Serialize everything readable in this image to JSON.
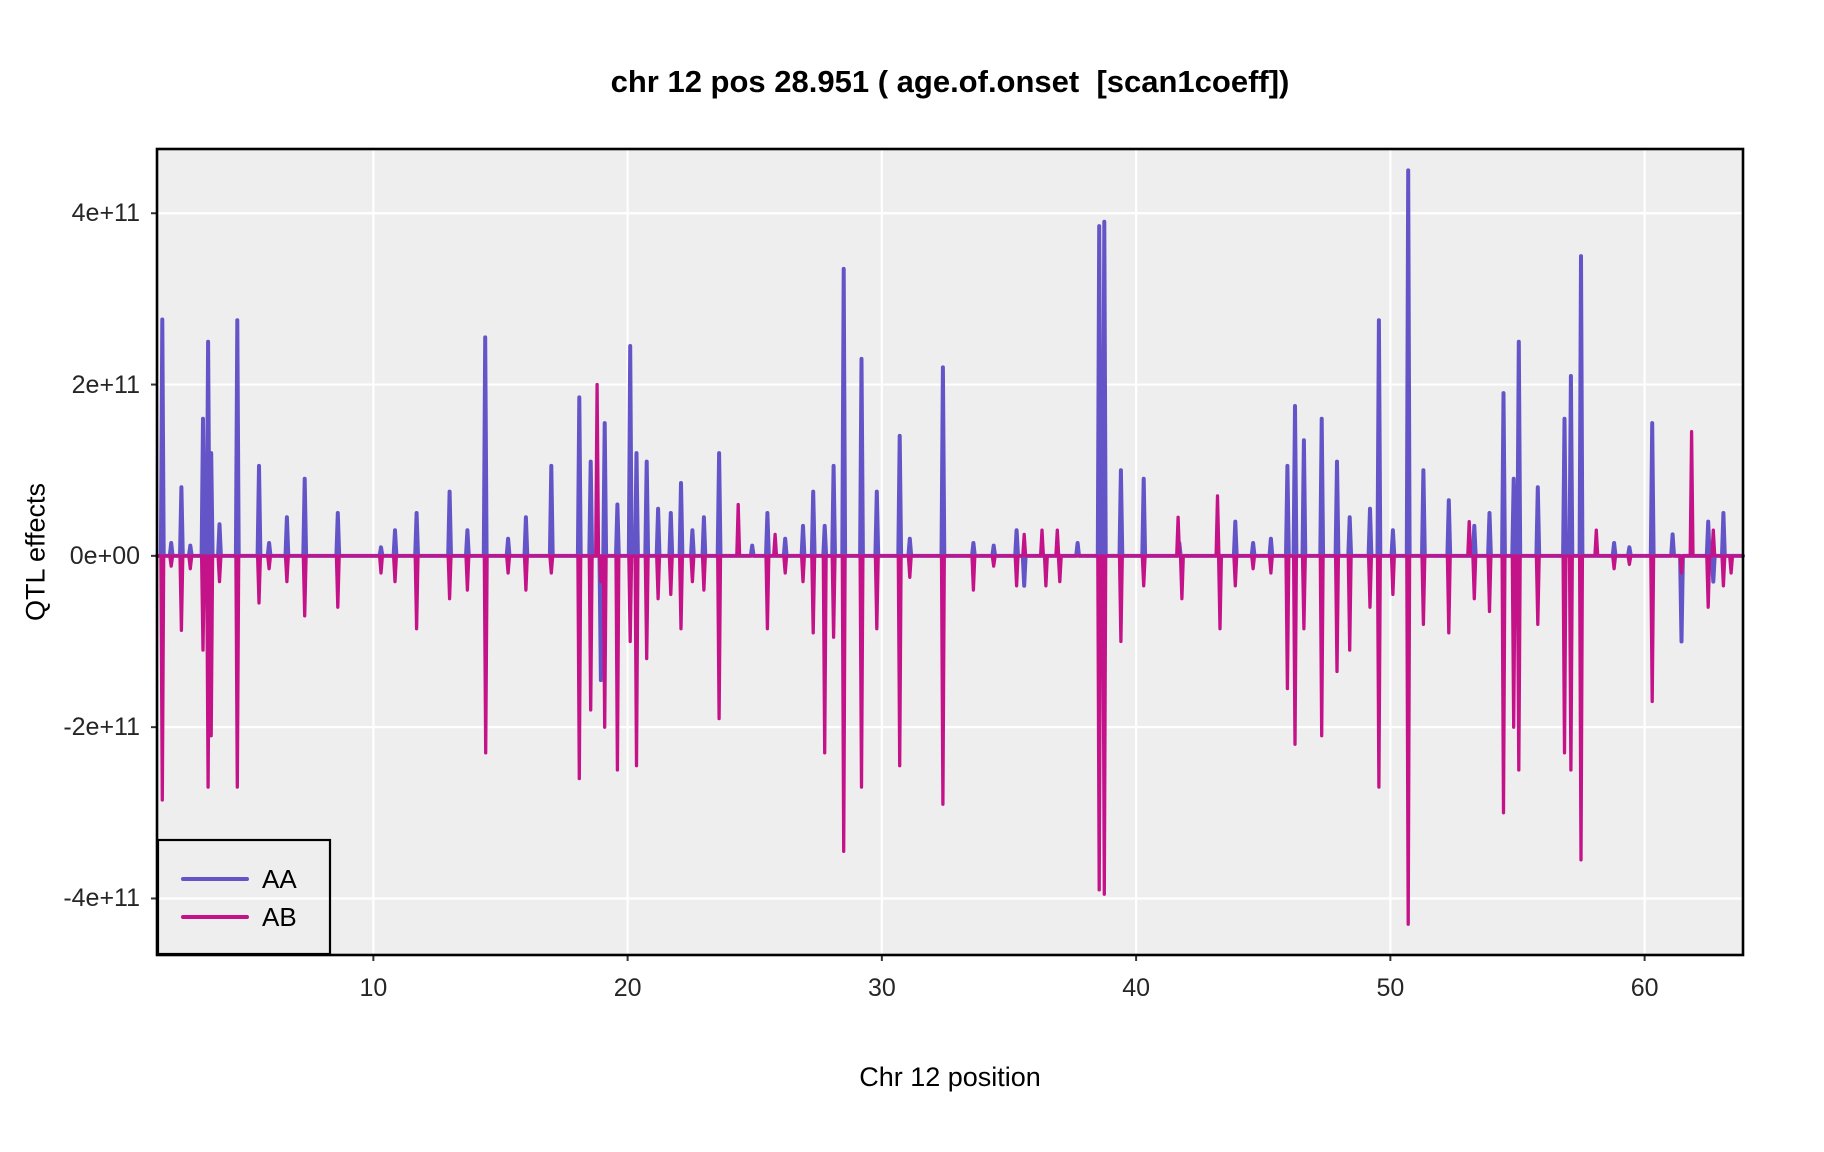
{
  "title": "chr 12 pos 28.951 ( age.of.onset  [scan1coeff])",
  "x_axis_label": "Chr 12 position",
  "y_axis_label": "QTL effects",
  "colors": {
    "aa_line": "#6355C8",
    "ab_line": "#C41389",
    "panel_background": "#EFEEEE",
    "gridline": "#FFFFFF",
    "panel_border": "#000000",
    "tick_text": "#262626",
    "title_text": "#000000"
  },
  "legend": {
    "position": "bottom-left-inside-panel",
    "entries": [
      {
        "label": "AA",
        "color": "#6355C8"
      },
      {
        "label": "AB",
        "color": "#C41389"
      }
    ]
  },
  "chart_data": {
    "type": "line",
    "title": "chr 12 pos 28.951 ( age.of.onset  [scan1coeff])",
    "xlabel": "Chr 12 position",
    "ylabel": "QTL effects",
    "grid": "white major gridlines on gray panel",
    "legend_position": "bottom-left inside panel",
    "value_unit": "1e11",
    "xlim": [
      1.49,
      63.87
    ],
    "ylim_e11": [
      -4.66,
      4.75
    ],
    "x_ticks": [
      {
        "v": 10,
        "label": "10"
      },
      {
        "v": 20,
        "label": "20"
      },
      {
        "v": 30,
        "label": "30"
      },
      {
        "v": 40,
        "label": "40"
      },
      {
        "v": 50,
        "label": "50"
      },
      {
        "v": 60,
        "label": "60"
      }
    ],
    "y_ticks": [
      {
        "v_e11": 4,
        "label": "4e+11"
      },
      {
        "v_e11": 2,
        "label": "2e+11"
      },
      {
        "v_e11": 0,
        "label": "0e+00"
      },
      {
        "v_e11": -2,
        "label": "-2e+11"
      },
      {
        "v_e11": -4,
        "label": "-4e+11"
      }
    ],
    "series": [
      {
        "name": "AA",
        "color": "#6355C8",
        "baseline_e11": 0,
        "spikes": [
          [
            1.7,
            2.76
          ],
          [
            2.05,
            0.15
          ],
          [
            2.45,
            0.8
          ],
          [
            2.8,
            0.12
          ],
          [
            3.3,
            1.6
          ],
          [
            3.5,
            2.5
          ],
          [
            3.62,
            1.2
          ],
          [
            3.95,
            0.37
          ],
          [
            4.65,
            2.75
          ],
          [
            5.5,
            1.05
          ],
          [
            5.9,
            0.15
          ],
          [
            6.6,
            0.45
          ],
          [
            7.3,
            0.9
          ],
          [
            8.6,
            0.5
          ],
          [
            10.3,
            0.1
          ],
          [
            10.85,
            0.3
          ],
          [
            11.7,
            0.5
          ],
          [
            13.0,
            0.75
          ],
          [
            13.7,
            0.3
          ],
          [
            14.4,
            2.55
          ],
          [
            15.3,
            0.2
          ],
          [
            16.0,
            0.45
          ],
          [
            17.0,
            1.05
          ],
          [
            18.1,
            1.85
          ],
          [
            18.55,
            1.1
          ],
          [
            18.95,
            -1.45
          ],
          [
            19.1,
            1.55
          ],
          [
            19.6,
            0.6
          ],
          [
            20.1,
            2.45
          ],
          [
            20.35,
            1.2
          ],
          [
            20.75,
            1.1
          ],
          [
            21.2,
            0.55
          ],
          [
            21.7,
            0.5
          ],
          [
            22.1,
            0.85
          ],
          [
            22.55,
            0.3
          ],
          [
            23.0,
            0.45
          ],
          [
            23.6,
            1.2
          ],
          [
            24.9,
            0.12
          ],
          [
            25.5,
            0.5
          ],
          [
            26.2,
            0.2
          ],
          [
            26.9,
            0.35
          ],
          [
            27.3,
            0.75
          ],
          [
            27.75,
            0.35
          ],
          [
            28.1,
            1.05
          ],
          [
            28.5,
            3.35
          ],
          [
            29.2,
            2.3
          ],
          [
            29.8,
            0.75
          ],
          [
            30.7,
            1.4
          ],
          [
            31.1,
            0.2
          ],
          [
            32.4,
            2.2
          ],
          [
            33.6,
            0.15
          ],
          [
            34.4,
            0.12
          ],
          [
            35.3,
            0.3
          ],
          [
            35.6,
            -0.35
          ],
          [
            37.7,
            0.15
          ],
          [
            38.55,
            3.85
          ],
          [
            38.75,
            3.9
          ],
          [
            39.4,
            1.0
          ],
          [
            40.3,
            0.9
          ],
          [
            41.7,
            0.15
          ],
          [
            43.9,
            0.4
          ],
          [
            44.6,
            0.15
          ],
          [
            45.3,
            0.2
          ],
          [
            45.95,
            1.05
          ],
          [
            46.25,
            1.75
          ],
          [
            46.6,
            1.35
          ],
          [
            47.3,
            1.6
          ],
          [
            47.9,
            1.1
          ],
          [
            48.4,
            0.45
          ],
          [
            49.2,
            0.55
          ],
          [
            49.55,
            2.75
          ],
          [
            50.1,
            0.3
          ],
          [
            50.7,
            4.5
          ],
          [
            51.3,
            1.0
          ],
          [
            52.3,
            0.65
          ],
          [
            53.3,
            0.35
          ],
          [
            53.9,
            0.5
          ],
          [
            54.45,
            1.9
          ],
          [
            54.85,
            0.9
          ],
          [
            55.05,
            2.5
          ],
          [
            55.8,
            0.8
          ],
          [
            56.85,
            1.6
          ],
          [
            57.1,
            2.1
          ],
          [
            57.5,
            3.5
          ],
          [
            58.8,
            0.15
          ],
          [
            59.4,
            0.1
          ],
          [
            60.3,
            1.55
          ],
          [
            61.1,
            0.25
          ],
          [
            61.45,
            -1.0
          ],
          [
            62.5,
            0.4
          ],
          [
            62.7,
            -0.3
          ],
          [
            63.1,
            0.5
          ]
        ]
      },
      {
        "name": "AB",
        "color": "#C41389",
        "baseline_e11": 0,
        "spikes": [
          [
            1.7,
            -2.85
          ],
          [
            2.05,
            -0.12
          ],
          [
            2.45,
            -0.87
          ],
          [
            2.8,
            -0.15
          ],
          [
            3.3,
            -1.1
          ],
          [
            3.5,
            -2.7
          ],
          [
            3.62,
            -2.1
          ],
          [
            3.95,
            -0.3
          ],
          [
            4.65,
            -2.7
          ],
          [
            5.5,
            -0.55
          ],
          [
            5.9,
            -0.15
          ],
          [
            6.6,
            -0.3
          ],
          [
            7.3,
            -0.7
          ],
          [
            8.6,
            -0.6
          ],
          [
            10.3,
            -0.2
          ],
          [
            10.85,
            -0.3
          ],
          [
            11.7,
            -0.85
          ],
          [
            13.0,
            -0.5
          ],
          [
            13.7,
            -0.4
          ],
          [
            14.42,
            -2.3
          ],
          [
            15.3,
            -0.2
          ],
          [
            16.0,
            -0.4
          ],
          [
            17.0,
            -0.2
          ],
          [
            18.1,
            -2.6
          ],
          [
            18.55,
            -1.8
          ],
          [
            18.8,
            2.0
          ],
          [
            18.95,
            -0.3
          ],
          [
            19.1,
            -2.0
          ],
          [
            19.6,
            -2.5
          ],
          [
            20.1,
            -1.0
          ],
          [
            20.35,
            -2.45
          ],
          [
            20.75,
            -1.2
          ],
          [
            21.2,
            -0.5
          ],
          [
            21.7,
            -0.45
          ],
          [
            22.1,
            -0.85
          ],
          [
            22.55,
            -0.3
          ],
          [
            23.0,
            -0.4
          ],
          [
            23.6,
            -1.9
          ],
          [
            24.35,
            0.6
          ],
          [
            25.5,
            -0.85
          ],
          [
            25.8,
            0.25
          ],
          [
            26.2,
            -0.2
          ],
          [
            26.9,
            -0.3
          ],
          [
            27.3,
            -0.9
          ],
          [
            27.75,
            -2.3
          ],
          [
            28.1,
            -0.95
          ],
          [
            28.5,
            -3.45
          ],
          [
            29.2,
            -2.7
          ],
          [
            29.8,
            -0.85
          ],
          [
            30.7,
            -2.45
          ],
          [
            31.1,
            -0.25
          ],
          [
            32.4,
            -2.9
          ],
          [
            33.6,
            -0.4
          ],
          [
            34.4,
            -0.12
          ],
          [
            35.3,
            -0.35
          ],
          [
            35.6,
            0.25
          ],
          [
            36.3,
            0.3
          ],
          [
            36.45,
            -0.35
          ],
          [
            36.9,
            0.3
          ],
          [
            37.0,
            -0.3
          ],
          [
            38.55,
            -3.9
          ],
          [
            38.75,
            -3.95
          ],
          [
            39.4,
            -1.0
          ],
          [
            40.3,
            -0.35
          ],
          [
            41.65,
            0.45
          ],
          [
            41.8,
            -0.5
          ],
          [
            43.2,
            0.7
          ],
          [
            43.3,
            -0.85
          ],
          [
            43.9,
            -0.35
          ],
          [
            44.6,
            -0.15
          ],
          [
            45.3,
            -0.2
          ],
          [
            45.95,
            -1.55
          ],
          [
            46.25,
            -2.2
          ],
          [
            46.6,
            -0.85
          ],
          [
            47.3,
            -2.1
          ],
          [
            47.9,
            -1.35
          ],
          [
            48.4,
            -1.1
          ],
          [
            49.2,
            -0.6
          ],
          [
            49.55,
            -2.7
          ],
          [
            50.1,
            -0.45
          ],
          [
            50.7,
            -4.3
          ],
          [
            51.3,
            -0.8
          ],
          [
            52.3,
            -0.9
          ],
          [
            53.1,
            0.4
          ],
          [
            53.3,
            -0.5
          ],
          [
            53.9,
            -0.65
          ],
          [
            54.45,
            -3.0
          ],
          [
            54.85,
            -2.0
          ],
          [
            55.05,
            -2.5
          ],
          [
            55.8,
            -0.8
          ],
          [
            56.85,
            -2.3
          ],
          [
            57.1,
            -2.5
          ],
          [
            57.5,
            -3.55
          ],
          [
            58.1,
            0.3
          ],
          [
            58.8,
            -0.15
          ],
          [
            59.4,
            -0.1
          ],
          [
            60.3,
            -1.7
          ],
          [
            61.45,
            -0.2
          ],
          [
            61.85,
            1.45
          ],
          [
            62.5,
            -0.6
          ],
          [
            62.7,
            0.3
          ],
          [
            63.1,
            -0.35
          ],
          [
            63.4,
            -0.2
          ]
        ]
      }
    ]
  }
}
